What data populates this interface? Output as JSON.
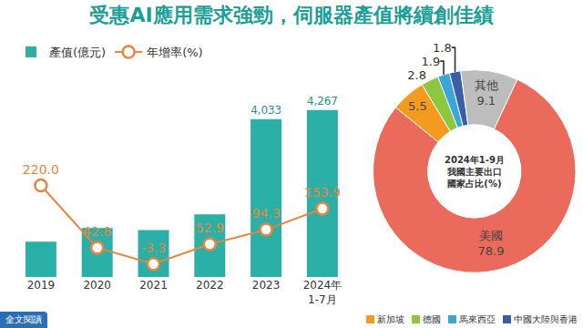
{
  "title": "受惠AI應用需求強勁，伺服器產值將續創佳績",
  "button": "全文閱讀",
  "chart_data": [
    {
      "type": "bar",
      "categories": [
        "2019",
        "2020",
        "2021",
        "2022",
        "2023",
        "2024年\n1-7月"
      ],
      "series": [
        {
          "name": "產值(億元)",
          "type": "bar",
          "color": "#2ab0a6",
          "values": [
            900,
            1250,
            1200,
            1600,
            4033,
            4267
          ],
          "value_labels": [
            null,
            null,
            null,
            null,
            "4,033",
            "4,267"
          ]
        },
        {
          "name": "年增率(%)",
          "type": "line",
          "axis": "y2",
          "color": "#e8843c",
          "marker": "circle",
          "values": [
            220.0,
            42.8,
            -3.3,
            52.9,
            94.3,
            153.9
          ],
          "value_labels": [
            "220.0",
            "42.8",
            "-3.3",
            "52.9",
            "94.3",
            "153.9"
          ]
        }
      ],
      "ylim": [
        0,
        5400
      ],
      "y2lim": [
        -40,
        560
      ],
      "tick_labels": "x",
      "grid": false,
      "legend": "top left",
      "data_labels": true
    },
    {
      "type": "pie",
      "center_text": "2024年1-9月\n我國主要出口\n國家占比(%)",
      "labels": [
        "美國",
        "新加坡",
        "德國",
        "馬來西亞",
        "中國大陸與香港",
        "其他"
      ],
      "values": [
        78.9,
        5.5,
        2.8,
        1.9,
        1.8,
        9.1
      ],
      "colors": [
        "#ea6a5c",
        "#f39a1f",
        "#8dc63f",
        "#3aa7d9",
        "#3a5ea8",
        "#bdbdbd"
      ],
      "legend_labels": [
        "新加坡",
        "德國",
        "馬來西亞",
        "中國大陸與香港"
      ],
      "data_labels": true
    }
  ]
}
